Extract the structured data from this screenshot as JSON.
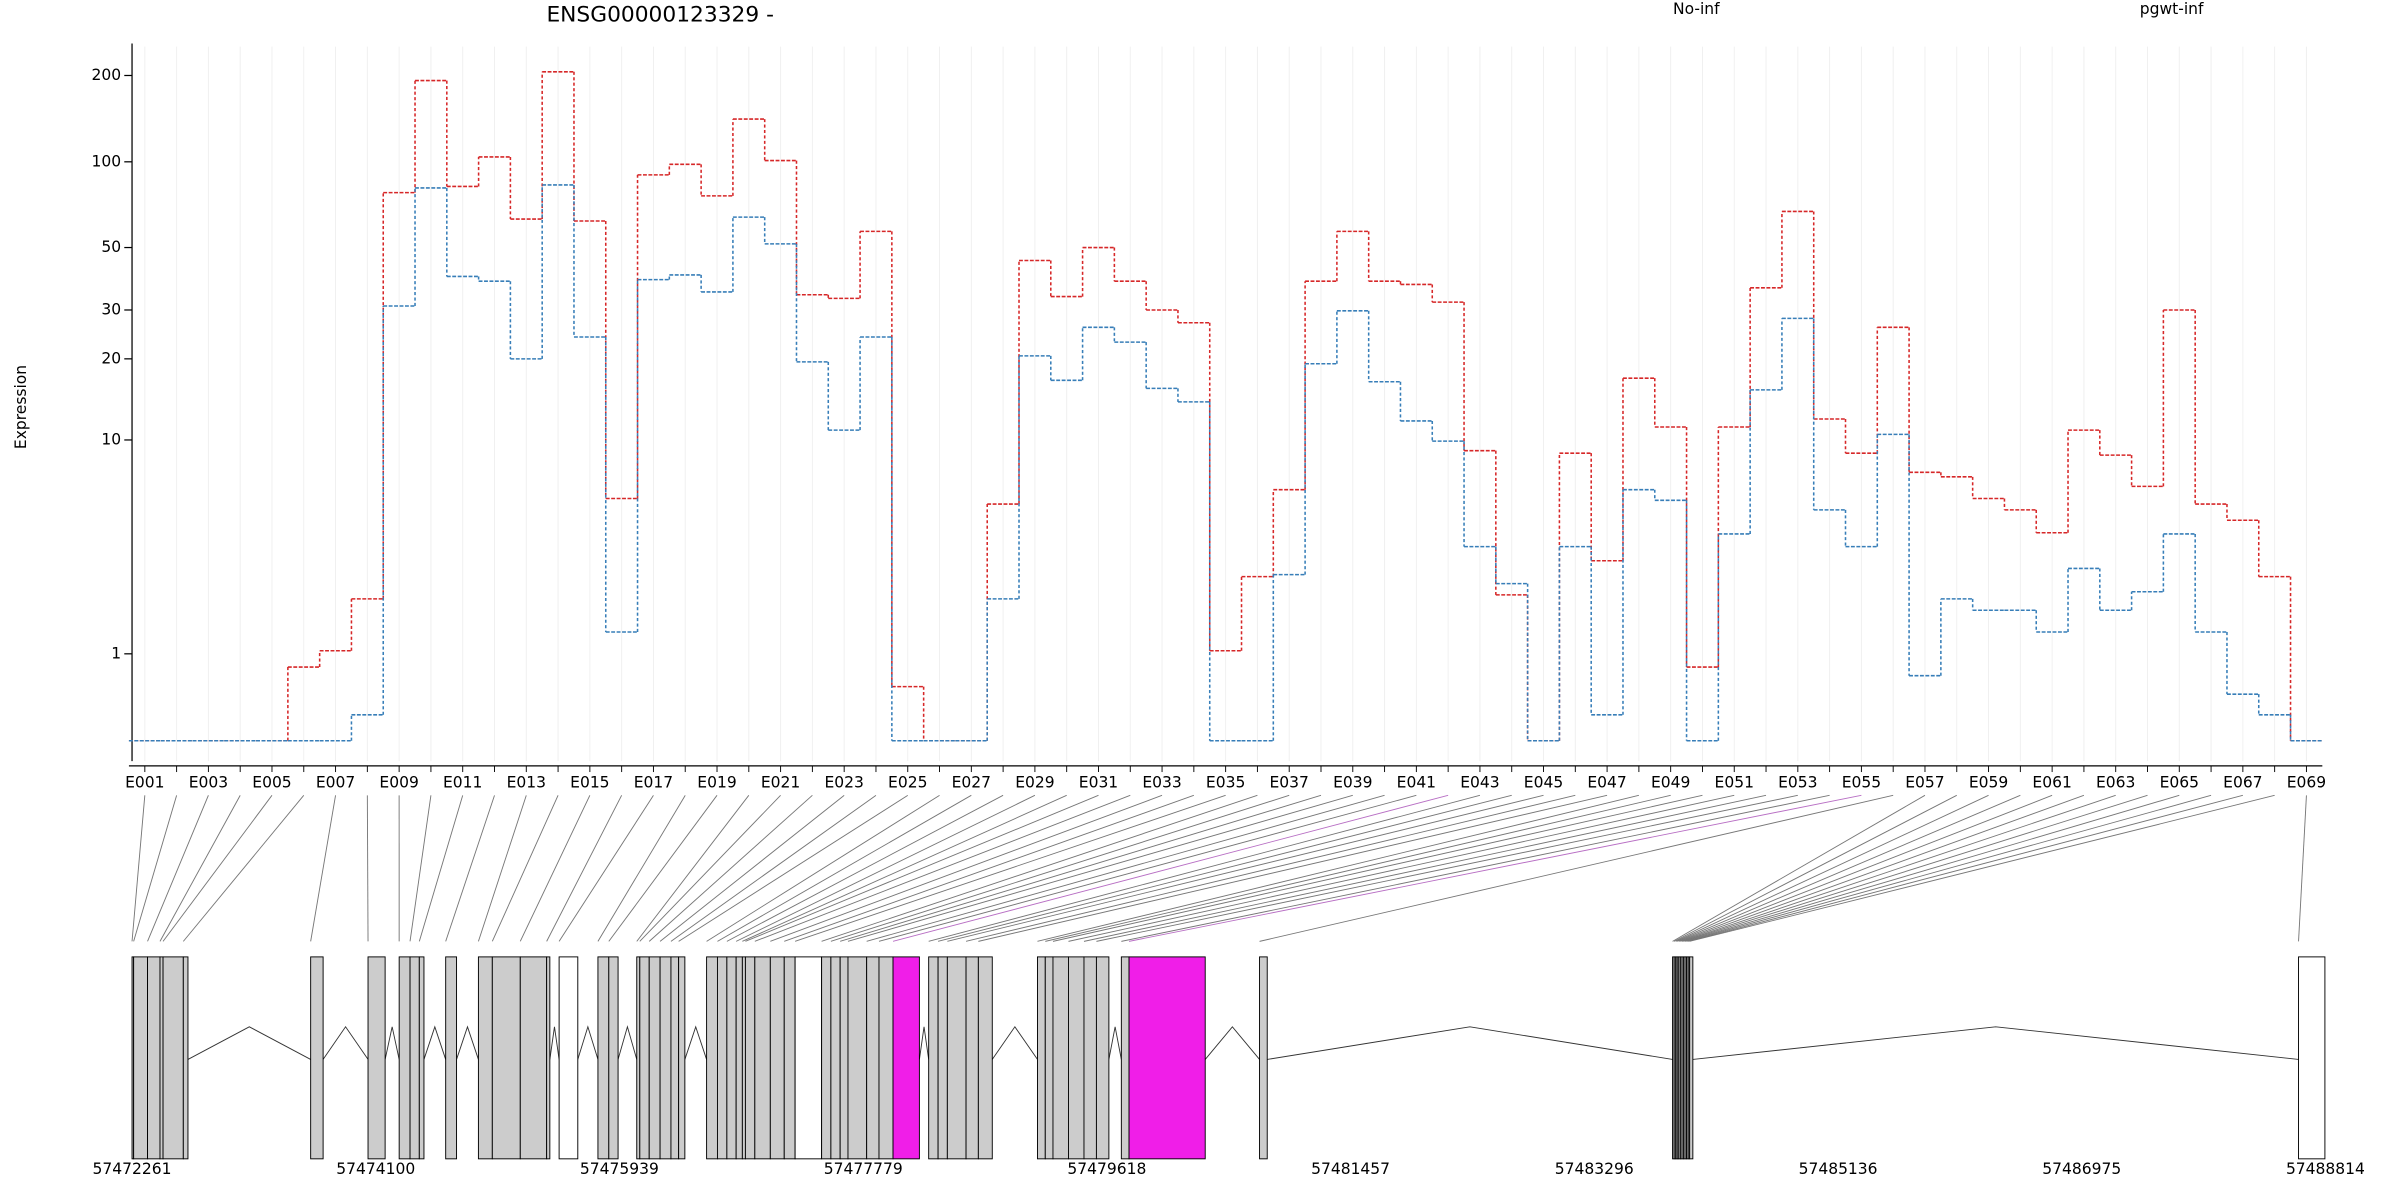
{
  "chart_data": {
    "type": "step",
    "title": "ENSG00000123329 -",
    "y_label": "Expression",
    "yscale": "log10(x+1)",
    "categories": [
      "E001",
      null,
      "E003",
      null,
      "E005",
      null,
      "E007",
      null,
      "E009",
      null,
      "E011",
      null,
      "E013",
      null,
      "E015",
      null,
      "E017",
      null,
      "E019",
      null,
      "E021",
      null,
      "E023",
      null,
      "E025",
      null,
      "E027",
      null,
      "E029",
      null,
      "E031",
      null,
      "E033",
      null,
      "E035",
      null,
      "E037",
      null,
      "E039",
      null,
      "E041",
      null,
      "E043",
      null,
      "E045",
      null,
      "E047",
      null,
      "E049",
      null,
      "E051",
      null,
      "E053",
      null,
      "E055",
      null,
      "E057",
      null,
      "E059",
      null,
      "E061",
      null,
      "E063",
      null,
      "E065",
      null,
      "E067",
      null,
      "E069"
    ],
    "series": [
      {
        "name": "No-inf",
        "color": "#d62728",
        "values": [
          0,
          0,
          0,
          0,
          0,
          0.8,
          1.05,
          2.1,
          78,
          192,
          82,
          104,
          63,
          206,
          62,
          5.9,
          90,
          98,
          76,
          141,
          101,
          34,
          33,
          57,
          0.54,
          0,
          0,
          5.6,
          45,
          33.5,
          50,
          38,
          30,
          27,
          1.05,
          2.7,
          6.4,
          38,
          57,
          38,
          37,
          32,
          9.1,
          2.2,
          0,
          8.9,
          3.2,
          17,
          11.2,
          0.8,
          11.2,
          36,
          67,
          12,
          8.9,
          26,
          7.5,
          7.2,
          5.9,
          5.3,
          4.25,
          10.9,
          8.75,
          6.6,
          30,
          5.6,
          4.8,
          2.7,
          0
        ]
      },
      {
        "name": "pgwt-inf",
        "color": "#377eb8",
        "values": [
          0,
          0,
          0,
          0,
          0,
          0,
          0,
          0.23,
          31,
          81,
          39.5,
          38,
          20,
          83,
          24,
          1.38,
          38.5,
          40,
          34.8,
          64,
          51.5,
          19.5,
          10.9,
          24,
          0,
          0,
          0,
          2.1,
          20.5,
          16.7,
          26,
          23,
          15.6,
          13.9,
          0,
          0,
          2.76,
          19.2,
          29.8,
          16.5,
          11.8,
          9.9,
          3.7,
          2.5,
          0,
          3.7,
          0.23,
          6.4,
          5.8,
          0,
          4.2,
          15.4,
          28,
          5.3,
          3.7,
          10.5,
          0.68,
          2.1,
          1.83,
          1.83,
          1.38,
          2.95,
          1.83,
          2.28,
          4.2,
          1.38,
          0.45,
          0.23,
          0
        ]
      }
    ],
    "ylim": [
      -0.15,
      260
    ],
    "yticks": [
      1,
      10,
      20,
      30,
      50,
      100,
      200
    ],
    "grid": true,
    "gene_model": {
      "xlim": [
        57472261,
        57488814
      ],
      "xticks": [
        57472261,
        57474100,
        57475939,
        57477779,
        57479618,
        57481457,
        57483296,
        57485136,
        57486975,
        57488814
      ],
      "exons": [
        [
          57472261,
          57472273
        ],
        [
          57472273,
          57472378
        ],
        [
          57472378,
          57472472
        ],
        [
          57472472,
          57472495
        ],
        [
          57472495,
          57472648
        ],
        [
          57472648,
          57472683
        ],
        [
          57473609,
          57473703
        ],
        [
          57474042,
          57474171
        ],
        [
          57474277,
          57474359
        ],
        [
          57474359,
          57474429
        ],
        [
          57474429,
          57474464
        ],
        [
          57474628,
          57474710
        ],
        [
          57474875,
          57474980
        ],
        [
          57474980,
          57475191
        ],
        [
          57475191,
          57475390
        ],
        [
          57475390,
          57475414
        ],
        [
          57475484,
          57475625
        ],
        [
          57475777,
          57475859
        ],
        [
          57475859,
          57475929
        ],
        [
          57476070,
          57476093
        ],
        [
          57476093,
          57476164
        ],
        [
          57476164,
          57476246
        ],
        [
          57476246,
          57476328
        ],
        [
          57476328,
          57476386
        ],
        [
          57476386,
          57476433
        ],
        [
          57476597,
          57476679
        ],
        [
          57476679,
          57476750
        ],
        [
          57476750,
          57476820
        ],
        [
          57476820,
          57476867
        ],
        [
          57476867,
          57476890
        ],
        [
          57476890,
          57476961
        ],
        [
          57476961,
          57477078
        ],
        [
          57477078,
          57477183
        ],
        [
          57477183,
          57477265
        ],
        [
          57477265,
          57477465
        ],
        [
          57477465,
          57477535
        ],
        [
          57477535,
          57477605
        ],
        [
          57477605,
          57477664
        ],
        [
          57477664,
          57477805
        ],
        [
          57477805,
          57477898
        ],
        [
          57477898,
          57478004
        ],
        [
          57478004,
          57478203
        ],
        [
          57478273,
          57478344
        ],
        [
          57478344,
          57478414
        ],
        [
          57478414,
          57478555
        ],
        [
          57478555,
          57478648
        ],
        [
          57478648,
          57478753
        ],
        [
          57479094,
          57479153
        ],
        [
          57479153,
          57479211
        ],
        [
          57479211,
          57479328
        ],
        [
          57479328,
          57479445
        ],
        [
          57479445,
          57479539
        ],
        [
          57479539,
          57479633
        ],
        [
          57479727,
          57479785
        ],
        [
          57479785,
          57480360
        ],
        [
          57480770,
          57480828
        ],
        [
          57483887,
          57483899
        ],
        [
          57483899,
          57483911
        ],
        [
          57483911,
          57483922
        ],
        [
          57483922,
          57483934
        ],
        [
          57483934,
          57483946
        ],
        [
          57483946,
          57483958
        ],
        [
          57483958,
          57483969
        ],
        [
          57483969,
          57483981
        ],
        [
          57483981,
          57483993
        ],
        [
          57483993,
          57484005
        ],
        [
          57484005,
          57484016
        ],
        [
          57484016,
          57484040
        ],
        [
          57488611,
          57488810
        ]
      ],
      "exon_fills": [
        "#cccccc",
        "#cccccc",
        "#cccccc",
        "#cccccc",
        "#cccccc",
        "#cccccc",
        "#cccccc",
        "#cccccc",
        "#cccccc",
        "#cccccc",
        "#cccccc",
        "#cccccc",
        "#cccccc",
        "#cccccc",
        "#cccccc",
        "#cccccc",
        "#ffffff",
        "#cccccc",
        "#cccccc",
        "#cccccc",
        "#cccccc",
        "#cccccc",
        "#cccccc",
        "#cccccc",
        "#cccccc",
        "#cccccc",
        "#cccccc",
        "#cccccc",
        "#cccccc",
        "#cccccc",
        "#cccccc",
        "#cccccc",
        "#cccccc",
        "#cccccc",
        "#ffffff",
        "#cccccc",
        "#cccccc",
        "#cccccc",
        "#cccccc",
        "#cccccc",
        "#cccccc",
        "#f01ee8",
        "#cccccc",
        "#cccccc",
        "#cccccc",
        "#cccccc",
        "#cccccc",
        "#cccccc",
        "#cccccc",
        "#cccccc",
        "#cccccc",
        "#cccccc",
        "#cccccc",
        "#cccccc",
        "#f01ee8",
        "#cccccc",
        "#cccccc",
        "#cccccc",
        "#cccccc",
        "#cccccc",
        "#cccccc",
        "#cccccc",
        "#cccccc",
        "#cccccc",
        "#cccccc",
        "#cccccc",
        "#cccccc",
        "#cccccc",
        "#ffffff"
      ]
    }
  }
}
